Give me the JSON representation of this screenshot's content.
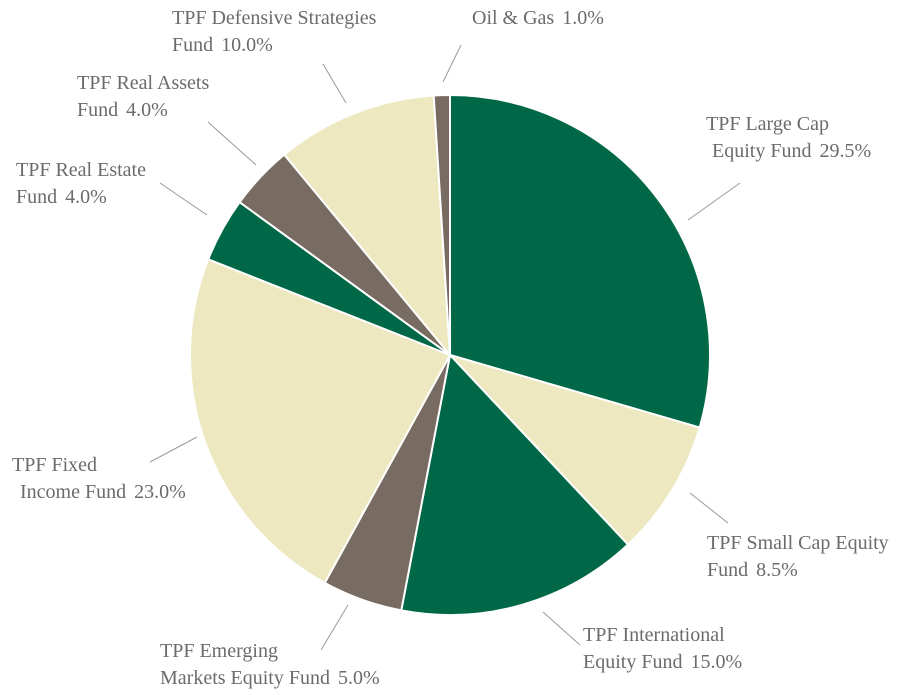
{
  "chart_data": {
    "type": "pie",
    "categories": [
      [
        "TPF Large Cap",
        "Equity Fund"
      ],
      [
        "TPF Small Cap Equity",
        "Fund"
      ],
      [
        "TPF International",
        "Equity Fund"
      ],
      [
        "TPF Emerging",
        "Markets Equity Fund"
      ],
      [
        "TPF Fixed",
        "Income Fund"
      ],
      [
        "TPF Real Estate",
        "Fund"
      ],
      [
        "TPF Real Assets",
        "Fund"
      ],
      [
        "TPF Defensive Strategies",
        "Fund"
      ],
      [
        "Oil & Gas"
      ]
    ],
    "values": [
      29.5,
      8.5,
      15.0,
      5.0,
      23.0,
      4.0,
      4.0,
      10.0,
      1.0
    ],
    "value_labels": [
      "29.5%",
      "8.5%",
      "15.0%",
      "5.0%",
      "23.0%",
      "4.0%",
      "4.0%",
      "10.0%",
      "1.0%"
    ],
    "colors": [
      "#006747",
      "#ede8c0",
      "#006747",
      "#786b62",
      "#ede8c0",
      "#006747",
      "#786b62",
      "#ede8c0",
      "#786b62"
    ]
  }
}
